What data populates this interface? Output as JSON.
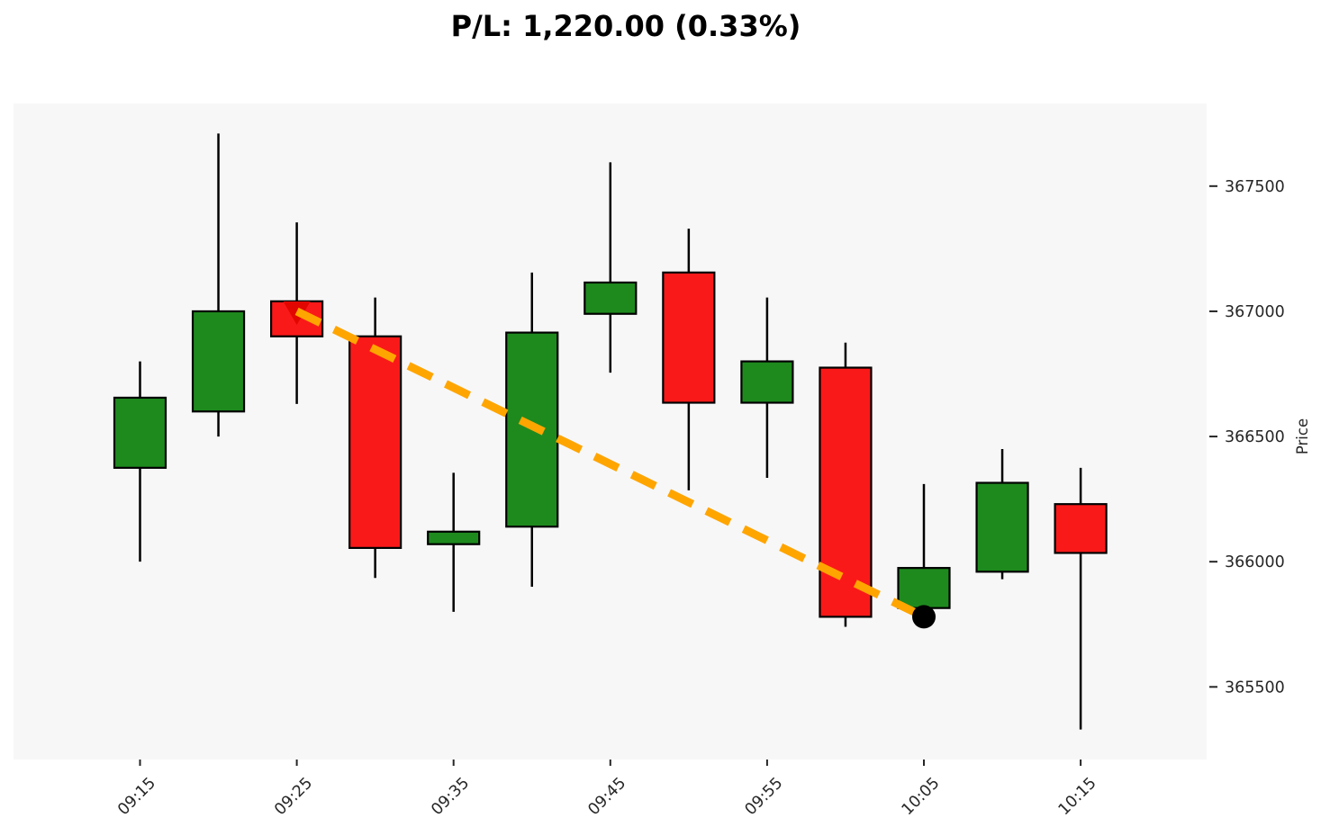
{
  "title": "P/L: 1,220.00 (0.33%)",
  "colors": {
    "up_candle": "#1e8a1e",
    "down_candle": "#fa1919",
    "candle_border": "#000000",
    "wick": "#000000",
    "trade_line": "#ffa500",
    "entry_marker": "#e10600",
    "exit_marker": "#000000",
    "plot_background": "#f7f7f7",
    "page_background": "#ffffff",
    "tick_text": "#262626",
    "title_text": "#000000"
  },
  "chart_data": {
    "type": "candlestick",
    "title": "P/L: 1,220.00 (0.33%)",
    "ylabel": "Price",
    "grid": false,
    "ylim": [
      365210,
      367830
    ],
    "x_tick_labels": [
      "09:15",
      "09:25",
      "09:35",
      "09:45",
      "09:55",
      "10:05",
      "10:15"
    ],
    "y_tick_values": [
      367500,
      367000,
      366500,
      366000,
      365500
    ],
    "y_tick_labels": [
      "367500",
      "367000",
      "366500",
      "366000",
      "365500"
    ],
    "candles": [
      {
        "time": "09:15",
        "open": 366375,
        "high": 366800,
        "low": 366000,
        "close": 366655
      },
      {
        "time": "09:20",
        "open": 366600,
        "high": 367710,
        "low": 366500,
        "close": 367000
      },
      {
        "time": "09:25",
        "open": 367040,
        "high": 367355,
        "low": 366630,
        "close": 366900
      },
      {
        "time": "09:30",
        "open": 366900,
        "high": 367055,
        "low": 365935,
        "close": 366055
      },
      {
        "time": "09:35",
        "open": 366070,
        "high": 366355,
        "low": 365800,
        "close": 366120
      },
      {
        "time": "09:40",
        "open": 366140,
        "high": 367155,
        "low": 365900,
        "close": 366915
      },
      {
        "time": "09:45",
        "open": 366990,
        "high": 367595,
        "low": 366755,
        "close": 367115
      },
      {
        "time": "09:50",
        "open": 367155,
        "high": 367330,
        "low": 366285,
        "close": 366635
      },
      {
        "time": "09:55",
        "open": 366635,
        "high": 367055,
        "low": 366335,
        "close": 366800
      },
      {
        "time": "10:00",
        "open": 366775,
        "high": 366875,
        "low": 365740,
        "close": 365780
      },
      {
        "time": "10:05",
        "open": 365815,
        "high": 366310,
        "low": 365760,
        "close": 365975
      },
      {
        "time": "10:10",
        "open": 365960,
        "high": 366450,
        "low": 365930,
        "close": 366315
      },
      {
        "time": "10:15",
        "open": 366230,
        "high": 366375,
        "low": 365330,
        "close": 366035
      }
    ],
    "trade": {
      "side": "short",
      "entry": {
        "time": "09:25",
        "price": 367000,
        "marker": "triangle-down"
      },
      "exit": {
        "time": "10:05",
        "price": 365780,
        "marker": "circle"
      },
      "line_style": "dashed",
      "pnl": "1,220.00",
      "pnl_pct": "0.33%"
    }
  }
}
